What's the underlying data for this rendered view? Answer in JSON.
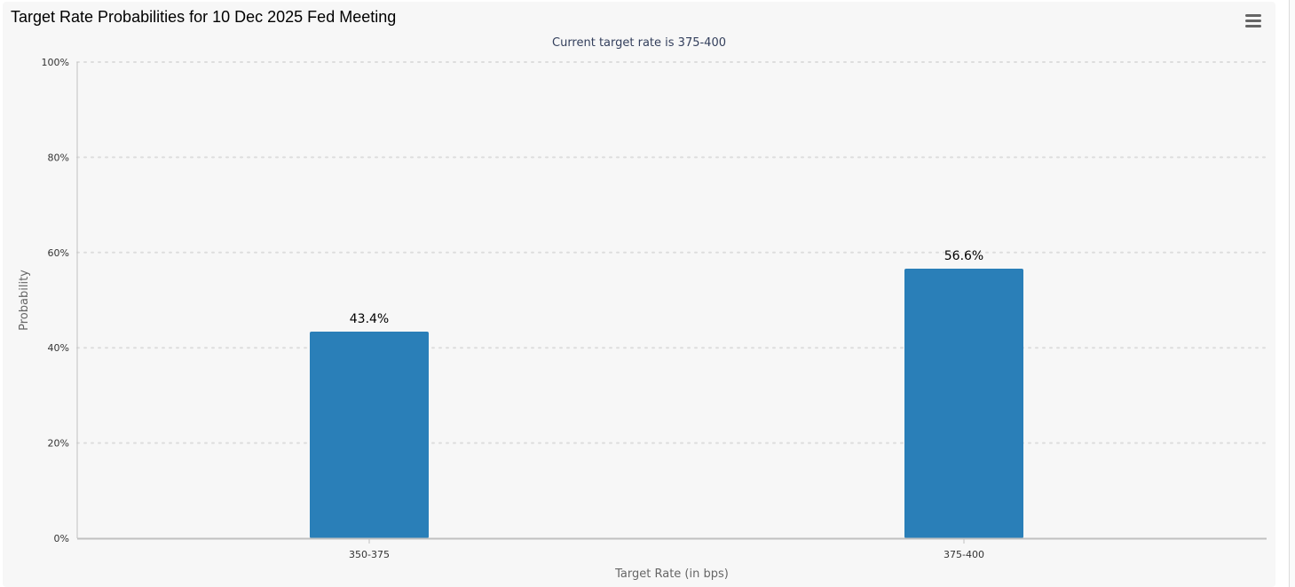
{
  "header": {
    "title": "Target Rate Probabilities for 10 Dec 2025 Fed Meeting",
    "menu_icon": "hamburger-menu-icon"
  },
  "colors": {
    "bar": "#2a7fb8",
    "panel_background": "#f7f7f7",
    "grid": "#dddddd",
    "axis": "#c0c0c0"
  },
  "chart_data": {
    "type": "bar",
    "title": "Target Rate Probabilities for 10 Dec 2025 Fed Meeting",
    "subtitle": "Current target rate is 375-400",
    "xlabel": "Target Rate (in bps)",
    "ylabel": "Probability",
    "categories": [
      "350-375",
      "375-400"
    ],
    "values": [
      43.4,
      56.6
    ],
    "data_labels": [
      "43.4%",
      "56.6%"
    ],
    "ylim": [
      0,
      100
    ],
    "yticks": [
      0,
      20,
      40,
      60,
      80,
      100
    ],
    "ytick_labels": [
      "0%",
      "20%",
      "40%",
      "60%",
      "80%",
      "100%"
    ],
    "grid": true,
    "legend": "none"
  }
}
